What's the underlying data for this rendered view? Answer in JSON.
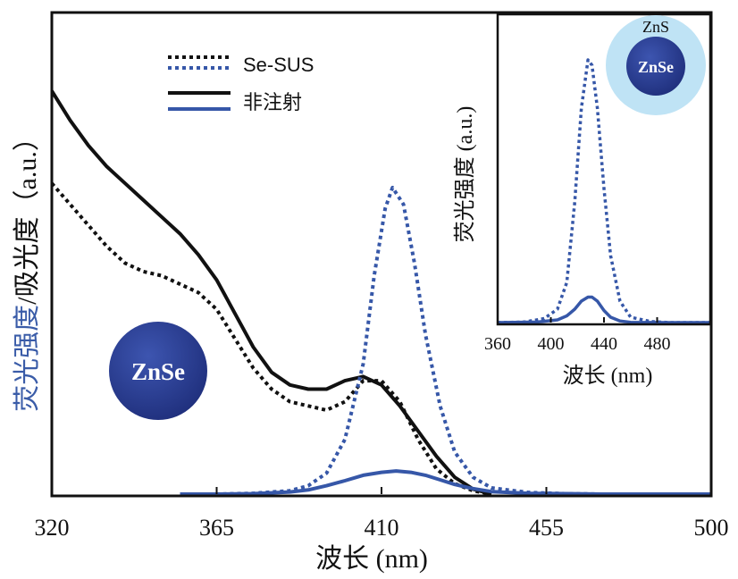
{
  "chart_data": [
    {
      "type": "line",
      "xlabel": "波长 (nm)",
      "ylabel_part1": "荧光强度",
      "ylabel_part2": "/吸光度（a.u.）",
      "xlim": [
        320,
        500
      ],
      "ylim": [
        0,
        1
      ],
      "xticks": [
        "320",
        "365",
        "410",
        "455",
        "500"
      ],
      "colors": {
        "black": "#111111",
        "blue": "#3657a8",
        "ylabel_blue": "#3a5ca8"
      },
      "series": [
        {
          "name": "Se-SUS",
          "kind": "absorbance",
          "color": "#111111",
          "style": "dotted",
          "x": [
            320,
            325,
            330,
            335,
            340,
            345,
            350,
            355,
            360,
            365,
            370,
            375,
            380,
            385,
            390,
            395,
            400,
            405,
            410,
            415,
            420,
            425,
            430,
            435,
            440
          ],
          "y": [
            0.74,
            0.69,
            0.64,
            0.59,
            0.55,
            0.53,
            0.52,
            0.5,
            0.48,
            0.44,
            0.37,
            0.3,
            0.25,
            0.22,
            0.21,
            0.2,
            0.22,
            0.27,
            0.27,
            0.22,
            0.13,
            0.06,
            0.025,
            0.008,
            0.0
          ]
        },
        {
          "name": "非注射",
          "kind": "absorbance",
          "color": "#111111",
          "style": "solid",
          "x": [
            320,
            325,
            330,
            335,
            340,
            345,
            350,
            355,
            360,
            365,
            370,
            375,
            380,
            385,
            390,
            395,
            400,
            405,
            410,
            415,
            420,
            425,
            430,
            435,
            440
          ],
          "y": [
            0.96,
            0.89,
            0.83,
            0.78,
            0.74,
            0.7,
            0.66,
            0.62,
            0.57,
            0.51,
            0.43,
            0.35,
            0.29,
            0.26,
            0.25,
            0.25,
            0.27,
            0.28,
            0.26,
            0.21,
            0.15,
            0.09,
            0.04,
            0.012,
            0.0
          ]
        },
        {
          "name": "Se-SUS",
          "kind": "fluorescence",
          "color": "#3657a8",
          "style": "dotted",
          "x": [
            355,
            365,
            375,
            385,
            390,
            395,
            400,
            405,
            408,
            411,
            413,
            416,
            419,
            422,
            426,
            430,
            435,
            440,
            450,
            460,
            470,
            480,
            490,
            500
          ],
          "y": [
            0.0,
            0.0,
            0.002,
            0.008,
            0.02,
            0.05,
            0.13,
            0.31,
            0.52,
            0.68,
            0.73,
            0.69,
            0.55,
            0.38,
            0.21,
            0.1,
            0.04,
            0.015,
            0.004,
            0.001,
            0.0,
            0.0,
            0.0,
            0.0
          ]
        },
        {
          "name": "非注射",
          "kind": "fluorescence",
          "color": "#3657a8",
          "style": "solid",
          "x": [
            355,
            365,
            375,
            385,
            390,
            395,
            400,
            405,
            410,
            414,
            418,
            422,
            426,
            430,
            435,
            440,
            450,
            460,
            470,
            480,
            490,
            500
          ],
          "y": [
            0.0,
            0.0,
            0.001,
            0.005,
            0.01,
            0.02,
            0.032,
            0.045,
            0.052,
            0.055,
            0.052,
            0.045,
            0.034,
            0.023,
            0.013,
            0.006,
            0.002,
            0.001,
            0.0,
            0.0,
            0.0,
            0.0
          ]
        }
      ],
      "legend": {
        "placement": "top-center",
        "entries": [
          {
            "label": "Se-SUS",
            "style": "dotted",
            "colors": [
              "#111111",
              "#3657a8"
            ]
          },
          {
            "label": "非注射",
            "style": "solid",
            "colors": [
              "#111111",
              "#3657a8"
            ]
          }
        ]
      },
      "particle": {
        "label": "ZnSe",
        "color": "#2a3f8f"
      }
    },
    {
      "type": "line",
      "xlabel": "波长 (nm)",
      "ylabel": "荧光强度 (a.u.)",
      "xlim": [
        360,
        520
      ],
      "ylim": [
        0,
        1
      ],
      "xticks": [
        "360",
        "400",
        "440",
        "480"
      ],
      "series": [
        {
          "name": "Se-SUS",
          "color": "#3657a8",
          "style": "dotted",
          "x": [
            360,
            380,
            395,
            405,
            412,
            418,
            423,
            428,
            431,
            435,
            440,
            445,
            452,
            460,
            475,
            490,
            520
          ],
          "y": [
            0.0,
            0.002,
            0.015,
            0.05,
            0.15,
            0.45,
            0.8,
            0.98,
            0.96,
            0.8,
            0.5,
            0.25,
            0.08,
            0.02,
            0.004,
            0.0,
            0.0
          ]
        },
        {
          "name": "非注射",
          "color": "#3657a8",
          "style": "solid",
          "x": [
            360,
            390,
            405,
            412,
            418,
            423,
            428,
            431,
            435,
            440,
            445,
            452,
            460,
            490,
            520
          ],
          "y": [
            0.0,
            0.002,
            0.01,
            0.025,
            0.05,
            0.08,
            0.095,
            0.095,
            0.08,
            0.045,
            0.02,
            0.006,
            0.001,
            0.0,
            0.0
          ]
        }
      ],
      "core_shell": {
        "shell_label": "ZnS",
        "core_label": "ZnSe",
        "shell_color": "#bfe3f5",
        "core_color": "#2a3f8f"
      }
    }
  ]
}
